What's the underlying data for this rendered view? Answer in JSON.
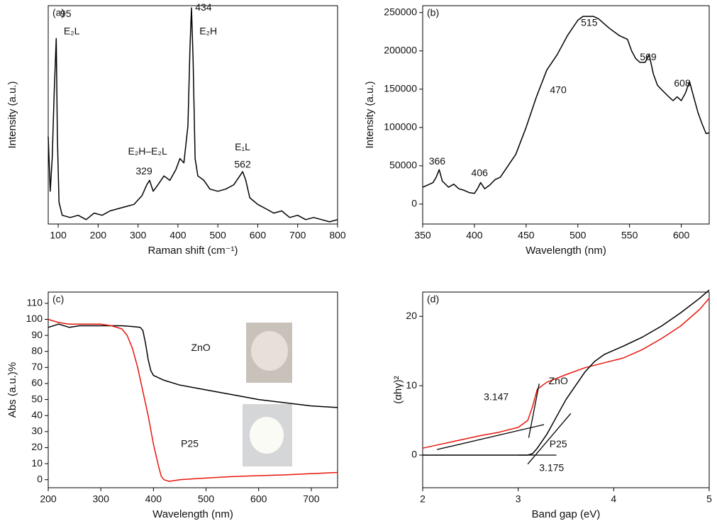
{
  "chart_data": [
    {
      "type": "line",
      "label": "(a)",
      "xlabel": "Raman shift (cm⁻¹)",
      "ylabel": "Intensity (a.u.)",
      "xlim": [
        75,
        800
      ],
      "ylim": [
        0,
        100
      ],
      "xticks": [
        100,
        200,
        300,
        400,
        500,
        600,
        700,
        800
      ],
      "series": [
        {
          "color": "#000000",
          "x": [
            75,
            80,
            85,
            90,
            95,
            98,
            102,
            110,
            130,
            150,
            170,
            190,
            210,
            230,
            250,
            270,
            290,
            310,
            322,
            329,
            338,
            350,
            365,
            380,
            395,
            405,
            415,
            425,
            430,
            434,
            438,
            443,
            450,
            465,
            480,
            500,
            520,
            540,
            555,
            562,
            570,
            580,
            600,
            620,
            640,
            660,
            680,
            700,
            720,
            740,
            760,
            780,
            800
          ],
          "values": [
            40,
            15,
            30,
            60,
            85,
            40,
            10,
            4,
            3,
            4,
            2,
            5,
            4,
            6,
            7,
            8,
            9,
            13,
            18,
            20,
            15,
            18,
            22,
            20,
            25,
            30,
            28,
            45,
            80,
            99,
            75,
            30,
            22,
            20,
            16,
            15,
            16,
            18,
            22,
            24,
            20,
            12,
            9,
            7,
            5,
            6,
            3,
            4,
            2,
            3,
            2,
            1,
            2
          ]
        }
      ],
      "annotations": [
        {
          "text": "95",
          "x": 119,
          "y": 96
        },
        {
          "text": "E₂L",
          "x": 134,
          "y": 88
        },
        {
          "text": "434",
          "x": 464,
          "y": 99
        },
        {
          "text": "E₂H",
          "x": 476,
          "y": 88
        },
        {
          "text": "E₂H–E₂L",
          "x": 324,
          "y": 33
        },
        {
          "text": "329",
          "x": 315,
          "y": 24
        },
        {
          "text": "E₁L",
          "x": 562,
          "y": 35
        },
        {
          "text": "562",
          "x": 562,
          "y": 27
        }
      ]
    },
    {
      "type": "line",
      "label": "(b)",
      "xlabel": "Wavelength (nm)",
      "ylabel": "Intensity (a.u.)",
      "xlim": [
        350,
        627
      ],
      "ylim": [
        -26000,
        259000
      ],
      "xticks": [
        350,
        400,
        450,
        500,
        550,
        600
      ],
      "yticks": [
        0,
        50000,
        100000,
        150000,
        200000,
        250000
      ],
      "series": [
        {
          "color": "#000000",
          "x": [
            350,
            355,
            360,
            363,
            366,
            369,
            375,
            380,
            385,
            390,
            395,
            400,
            403,
            406,
            410,
            415,
            420,
            425,
            430,
            440,
            450,
            460,
            470,
            480,
            490,
            500,
            505,
            510,
            515,
            520,
            530,
            540,
            548,
            552,
            556,
            560,
            565,
            569,
            573,
            577,
            582,
            588,
            592,
            596,
            600,
            604,
            608,
            612,
            616,
            620,
            624,
            627
          ],
          "values": [
            22000,
            25000,
            28000,
            35000,
            45000,
            30000,
            22000,
            26000,
            20000,
            18000,
            15000,
            14000,
            20000,
            28000,
            20000,
            25000,
            32000,
            35000,
            45000,
            65000,
            100000,
            140000,
            175000,
            195000,
            220000,
            240000,
            245000,
            245000,
            245000,
            242000,
            230000,
            220000,
            215000,
            200000,
            190000,
            185000,
            185000,
            195000,
            170000,
            155000,
            148000,
            140000,
            135000,
            140000,
            135000,
            145000,
            160000,
            140000,
            120000,
            105000,
            92000,
            93000
          ]
        }
      ],
      "annotations": [
        {
          "text": "366",
          "x": 364,
          "y": 55000
        },
        {
          "text": "406",
          "x": 405,
          "y": 40000
        },
        {
          "text": "470",
          "x": 481,
          "y": 148000
        },
        {
          "text": "515",
          "x": 511,
          "y": 236000
        },
        {
          "text": "569",
          "x": 568,
          "y": 191000
        },
        {
          "text": "608",
          "x": 601,
          "y": 157000
        }
      ]
    },
    {
      "type": "line",
      "label": "(c)",
      "xlabel": "Wavelength (nm)",
      "ylabel": "Abs (a.u.)%",
      "xlim": [
        200,
        750
      ],
      "ylim": [
        -5,
        117
      ],
      "xticks": [
        200,
        300,
        400,
        500,
        600,
        700
      ],
      "yticks": [
        0,
        10,
        20,
        30,
        40,
        50,
        60,
        70,
        80,
        90,
        100,
        110
      ],
      "series": [
        {
          "color": "#000000",
          "x": [
            200,
            220,
            240,
            260,
            280,
            300,
            320,
            340,
            360,
            375,
            380,
            385,
            390,
            395,
            400,
            420,
            450,
            500,
            550,
            600,
            650,
            700,
            750
          ],
          "values": [
            95,
            97,
            95,
            96,
            96,
            96,
            96,
            96,
            95.5,
            95,
            93,
            85,
            75,
            68,
            65,
            62,
            59,
            56,
            53,
            50,
            48,
            46,
            45
          ]
        },
        {
          "color": "#e8160c",
          "x": [
            200,
            220,
            240,
            260,
            280,
            300,
            320,
            340,
            350,
            360,
            370,
            380,
            390,
            400,
            410,
            415,
            420,
            430,
            450,
            500,
            550,
            600,
            650,
            700,
            750
          ],
          "values": [
            100,
            98,
            97,
            97,
            97,
            97,
            96,
            94,
            90,
            82,
            70,
            55,
            40,
            22,
            8,
            2,
            0,
            -1,
            0,
            1,
            2,
            2.5,
            3,
            3.8,
            4.5
          ]
        }
      ],
      "annotations": [
        {
          "text": "ZnO",
          "x": 490,
          "y": 82
        },
        {
          "text": "P25",
          "x": 469,
          "y": 22
        }
      ]
    },
    {
      "type": "line",
      "label": "(d)",
      "xlabel": "Band gap (eV)",
      "ylabel": "(αhγ)²",
      "xlim": [
        2,
        5
      ],
      "ylim": [
        -4.7,
        23.5
      ],
      "xticks": [
        2,
        3,
        4,
        5
      ],
      "yticks": [
        0,
        10,
        20
      ],
      "series": [
        {
          "color": "#e8160c",
          "x": [
            2,
            2.2,
            2.4,
            2.6,
            2.8,
            3.0,
            3.1,
            3.15,
            3.2,
            3.3,
            3.5,
            3.7,
            3.9,
            4.1,
            4.3,
            4.5,
            4.7,
            4.9,
            5
          ],
          "values": [
            1,
            1.6,
            2.2,
            2.8,
            3.3,
            4,
            5,
            7,
            9.5,
            10.5,
            11.6,
            12.6,
            13.3,
            14,
            15.2,
            16.8,
            18.6,
            21,
            22.6
          ]
        },
        {
          "color": "#000000",
          "x": [
            2,
            2.5,
            3.0,
            3.1,
            3.15,
            3.2,
            3.3,
            3.4,
            3.5,
            3.6,
            3.7,
            3.8,
            3.9,
            4.1,
            4.3,
            4.5,
            4.7,
            4.9,
            5
          ],
          "values": [
            0,
            0,
            0,
            0,
            0.2,
            1,
            3,
            5.5,
            8,
            10,
            12,
            13.5,
            14.5,
            15.7,
            17,
            18.6,
            20.5,
            22.6,
            23.8
          ]
        }
      ],
      "fit_lines": [
        {
          "x": [
            3.11,
            3.22
          ],
          "y": [
            2.5,
            10.3
          ]
        },
        {
          "x": [
            2.15,
            3.27
          ],
          "y": [
            0.8,
            4.4
          ]
        },
        {
          "x": [
            3.1,
            3.55
          ],
          "y": [
            -1.3,
            6
          ]
        },
        {
          "x": [
            3.0,
            3.4
          ],
          "y": [
            0,
            0
          ]
        }
      ],
      "annotations": [
        {
          "text": "ZnO",
          "x": 3.42,
          "y": 10.6
        },
        {
          "text": "3.147",
          "x": 2.77,
          "y": 8.3
        },
        {
          "text": "P25",
          "x": 3.42,
          "y": 1.5
        },
        {
          "text": "3.175",
          "x": 3.35,
          "y": -1.9
        }
      ]
    }
  ]
}
